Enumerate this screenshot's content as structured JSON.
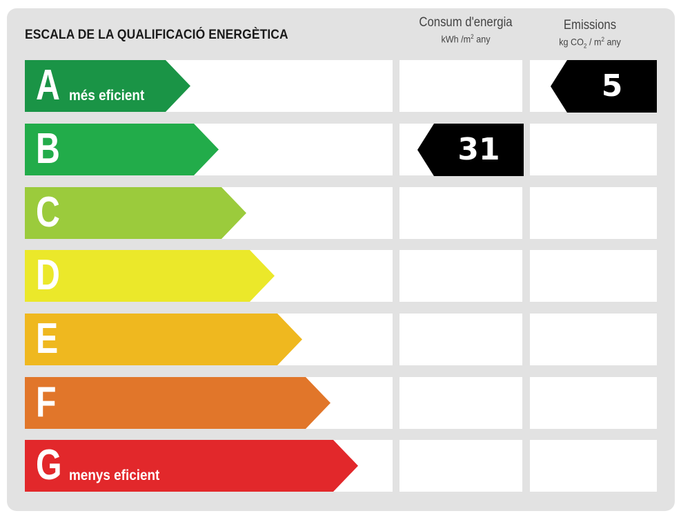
{
  "title": "ESCALA DE LA QUALIFICACIÓ ENERGÈTICA",
  "columns": {
    "energy": {
      "label": "Consum d'energia",
      "unit_pre": "kWh /m",
      "unit_sup": "2",
      "unit_post": " any"
    },
    "emissions": {
      "label": "Emissions",
      "unit_pre": "kg CO",
      "unit_sub": "2",
      "unit_mid": " / m",
      "unit_sup": "2",
      "unit_post": " any"
    }
  },
  "ratings": [
    {
      "letter": "A",
      "tag": "més eficient",
      "color": "#1a9446"
    },
    {
      "letter": "B",
      "tag": "",
      "color": "#22ac4a"
    },
    {
      "letter": "C",
      "tag": "",
      "color": "#9bcb3c"
    },
    {
      "letter": "D",
      "tag": "",
      "color": "#ebe82a"
    },
    {
      "letter": "E",
      "tag": "",
      "color": "#efb81f"
    },
    {
      "letter": "F",
      "tag": "",
      "color": "#e1762a"
    },
    {
      "letter": "G",
      "tag": "menys eficient",
      "color": "#e2282b"
    }
  ],
  "energy_value": {
    "value": "31",
    "rating": "B"
  },
  "emissions_value": {
    "value": "5",
    "rating": "A"
  }
}
